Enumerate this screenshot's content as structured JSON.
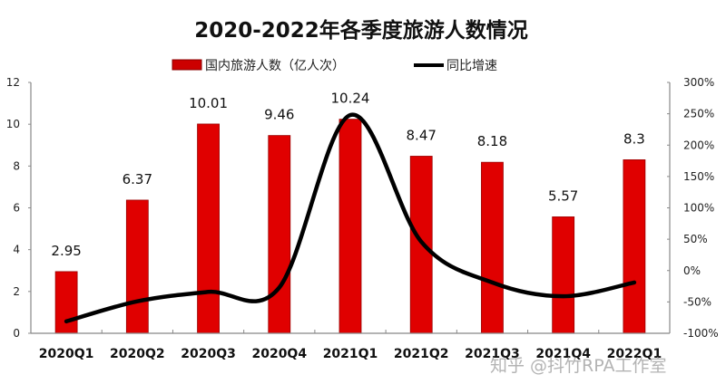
{
  "chart_data": {
    "type": "bar",
    "title": "2020-2022年各季度旅游人数情况",
    "categories": [
      "2020Q1",
      "2020Q2",
      "2020Q3",
      "2020Q4",
      "2021Q1",
      "2021Q2",
      "2021Q3",
      "2021Q4",
      "2022Q1"
    ],
    "series": [
      {
        "name": "国内旅游人数（亿人次）",
        "type": "bar",
        "axis": "left",
        "color": "#e00000",
        "values": [
          2.95,
          6.37,
          10.01,
          9.46,
          10.24,
          8.47,
          8.18,
          5.57,
          8.3
        ],
        "data_labels": [
          "2.95",
          "6.37",
          "10.01",
          "9.46",
          "10.24",
          "8.47",
          "8.18",
          "5.57",
          "8.3"
        ]
      },
      {
        "name": "同比增速",
        "type": "line",
        "smooth": true,
        "axis": "right",
        "color": "#000000",
        "values": [
          -81,
          -49,
          -34,
          -27,
          248,
          46,
          -19,
          -41,
          -19
        ],
        "unit": "%"
      }
    ],
    "xlabel": "",
    "ylabel_left": "",
    "ylabel_right": "",
    "ylim_left": [
      0,
      12
    ],
    "ylim_right": [
      -100,
      300
    ],
    "yticks_left": [
      "0",
      "2",
      "4",
      "6",
      "8",
      "10",
      "12"
    ],
    "yticks_right": [
      "-100%",
      "-50%",
      "0%",
      "50%",
      "100%",
      "150%",
      "200%",
      "250%",
      "300%"
    ],
    "grid": false,
    "legend_position": "top"
  },
  "legend": {
    "bar_label": "国内旅游人数（亿人次）",
    "line_label": "同比增速"
  },
  "watermark": "知乎 @抖竹RPA工作室"
}
